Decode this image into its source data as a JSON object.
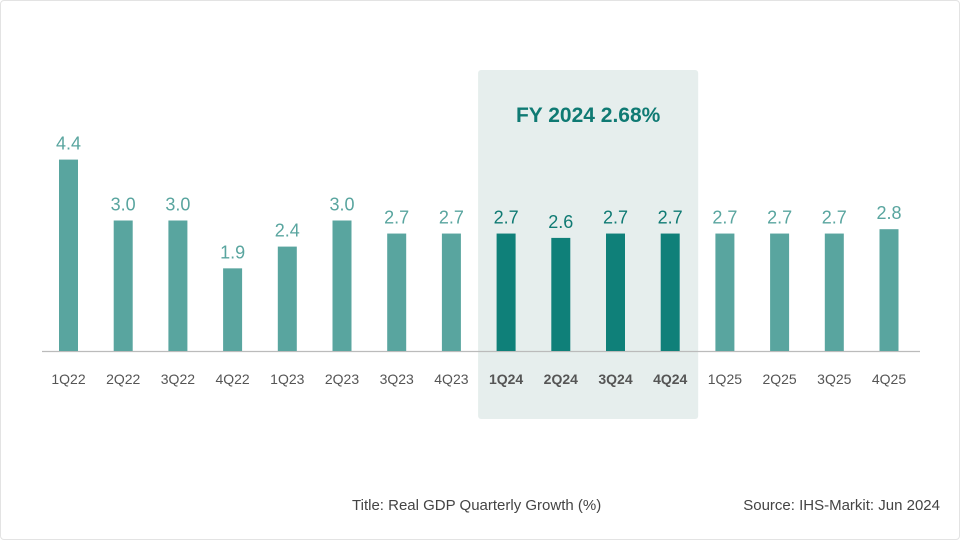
{
  "chart_data": {
    "type": "bar",
    "categories": [
      "1Q22",
      "2Q22",
      "3Q22",
      "4Q22",
      "1Q23",
      "2Q23",
      "3Q23",
      "4Q23",
      "1Q24",
      "2Q24",
      "3Q24",
      "4Q24",
      "1Q25",
      "2Q25",
      "3Q25",
      "4Q25"
    ],
    "values": [
      4.4,
      3.0,
      3.0,
      1.9,
      2.4,
      3.0,
      2.7,
      2.7,
      2.7,
      2.6,
      2.7,
      2.7,
      2.7,
      2.7,
      2.7,
      2.8
    ],
    "value_labels": [
      "4.4",
      "3.0",
      "3.0",
      "1.9",
      "2.4",
      "3.0",
      "2.7",
      "2.7",
      "2.7",
      "2.6",
      "2.7",
      "2.7",
      "2.7",
      "2.7",
      "2.7",
      "2.8"
    ],
    "highlight": {
      "categories": [
        "1Q24",
        "2Q24",
        "3Q24",
        "4Q24"
      ],
      "label": "FY 2024 2.68%"
    },
    "title": "Real GDP Quarterly Growth (%)",
    "xlabel": "",
    "ylabel": "",
    "grid": false,
    "legend": "none"
  },
  "colors": {
    "bar": "#59a59f",
    "bar_highlight": "#0f8079",
    "label": "#59a59f",
    "label_highlight": "#0f7a73",
    "highlight_band": "#e6eeed",
    "axis": "#bbbbbb",
    "tick": "#555555"
  },
  "footer": {
    "title_text": "Title: Real GDP Quarterly Growth (%)",
    "source_text": "Source: IHS-Markit: Jun 2024"
  }
}
